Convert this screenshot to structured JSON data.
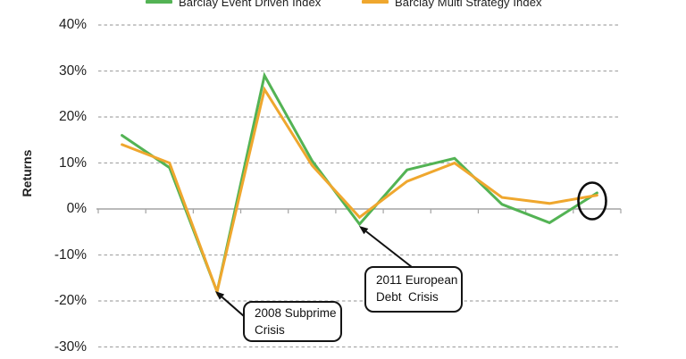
{
  "chart": {
    "y_axis_title": "Returns",
    "y_tick_labels": [
      "40%",
      "30%",
      "20%",
      "10%",
      "0%",
      "-10%",
      "-20%",
      "-30%"
    ],
    "legend": [
      {
        "label": "Barclay Event Driven Index",
        "color": "#53b354"
      },
      {
        "label": "Barclay Multi Strategy Index",
        "color": "#efa72e"
      }
    ],
    "annotations": [
      {
        "id": "2008",
        "line1": "2008 Subprime",
        "line2": "Crisis",
        "target_point": 3
      },
      {
        "id": "2011",
        "line1": "2011 European",
        "line2": "Debt  Crisis",
        "target_point": 6
      }
    ],
    "highlight": {
      "shape": "ellipse",
      "around": "last data points of both series"
    }
  },
  "chart_data": {
    "type": "line",
    "title": "",
    "xlabel": "",
    "ylabel": "Returns",
    "x_points": 11,
    "x_tick_labels_visible": false,
    "x": [
      1,
      2,
      3,
      4,
      5,
      6,
      7,
      8,
      9,
      10,
      11
    ],
    "series": [
      {
        "name": "Barclay Event Driven Index",
        "color": "#53b354",
        "values": [
          16,
          9,
          -18,
          29,
          10.5,
          -3.3,
          8.5,
          11,
          1,
          -3,
          3.5
        ]
      },
      {
        "name": "Barclay Multi Strategy Index",
        "color": "#efa72e",
        "values": [
          14,
          10,
          -18,
          26,
          9.5,
          -1.8,
          6,
          10,
          2.5,
          1.2,
          3
        ]
      }
    ],
    "y_ticks": [
      40,
      30,
      20,
      10,
      0,
      -10,
      -20,
      -30
    ],
    "y_unit": "%",
    "ylim": [
      -33,
      44
    ],
    "grid": "horizontal-dashed",
    "legend_position": "top",
    "annotated_events": [
      {
        "text": "2008 Subprime Crisis",
        "point": 3,
        "value_both_series": -18
      },
      {
        "text": "2011 European Debt  Crisis",
        "point": 6,
        "value_event_driven": -3.3
      }
    ]
  }
}
